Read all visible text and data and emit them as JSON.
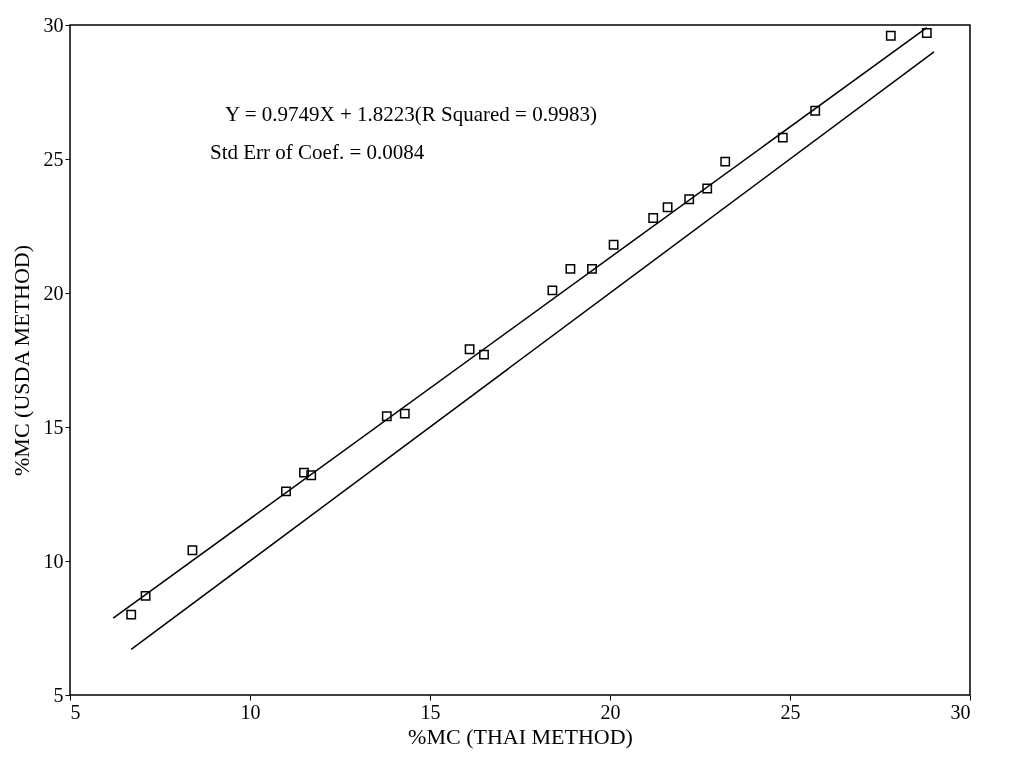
{
  "chart_data": {
    "type": "scatter",
    "xlabel": "%MC (THAI METHOD)",
    "ylabel": "%MC (USDA METHOD)",
    "xlim": [
      5,
      30
    ],
    "ylim": [
      5,
      30
    ],
    "xticks": [
      5,
      10,
      15,
      20,
      25,
      30
    ],
    "yticks": [
      5,
      10,
      15,
      20,
      25,
      30
    ],
    "grid": false,
    "line_style": "solid",
    "annotations": [
      "Y = 0.9749X + 1.8223(R Squared = 0.9983)",
      "Std Err of Coef. = 0.0084"
    ],
    "series": [
      {
        "marker": "square",
        "color": "#000000",
        "x": [
          6.7,
          7.1,
          8.4,
          11.0,
          11.5,
          11.7,
          13.8,
          14.3,
          16.1,
          16.5,
          18.4,
          18.9,
          19.5,
          20.1,
          21.2,
          21.6,
          22.2,
          22.7,
          23.2,
          24.8,
          25.7,
          27.8,
          28.8
        ],
        "values": [
          8.0,
          8.7,
          10.4,
          12.6,
          13.3,
          13.2,
          15.4,
          15.5,
          17.9,
          17.7,
          20.1,
          20.9,
          20.9,
          21.8,
          22.8,
          23.2,
          23.5,
          23.9,
          24.9,
          25.8,
          26.8,
          29.6,
          29.7
        ]
      },
      {
        "type": "line",
        "color": "#000000",
        "x": [
          6.2,
          28.8
        ],
        "values": [
          7.87,
          29.9
        ]
      },
      {
        "type": "line",
        "color": "#000000",
        "x": [
          6.7,
          29.0
        ],
        "values": [
          6.7,
          29.0
        ]
      }
    ]
  }
}
